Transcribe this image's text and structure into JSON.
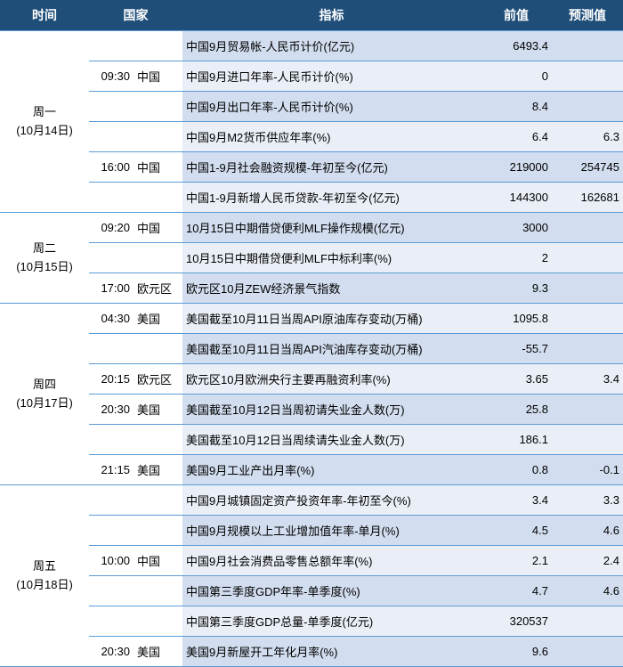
{
  "header": {
    "day": "时间",
    "country": "国家",
    "indicator": "指标",
    "prev": "前值",
    "forecast": "预测值"
  },
  "days": [
    {
      "label_line1": "周一",
      "label_line2": "(10月14日)",
      "rows": [
        {
          "time": "",
          "country": "",
          "indicator": "中国9月贸易帐-人民币计价(亿元)",
          "prev": "6493.4",
          "forecast": "",
          "parity": "odd",
          "time_rowspan": 0,
          "country_rowspan": 0
        },
        {
          "time": "09:30",
          "country": "中国",
          "indicator": "中国9月进口年率-人民币计价(%)",
          "prev": "0",
          "forecast": "",
          "parity": "even",
          "time_rowspan": 1,
          "country_rowspan": 1,
          "first_in_day": true,
          "day_rowspan": 6
        },
        {
          "time": "",
          "country": "",
          "indicator": "中国9月出口年率-人民币计价(%)",
          "prev": "8.4",
          "forecast": "",
          "parity": "odd",
          "time_rowspan": 0,
          "country_rowspan": 0
        },
        {
          "time": "",
          "country": "",
          "indicator": "中国9月M2货币供应年率(%)",
          "prev": "6.4",
          "forecast": "6.3",
          "parity": "even",
          "time_rowspan": 0,
          "country_rowspan": 0
        },
        {
          "time": "16:00",
          "country": "中国",
          "indicator": "中国1-9月社会融资规模-年初至今(亿元)",
          "prev": "219000",
          "forecast": "254745",
          "parity": "odd",
          "time_rowspan": 1,
          "country_rowspan": 1
        },
        {
          "time": "",
          "country": "",
          "indicator": "中国1-9月新增人民币贷款-年初至今(亿元)",
          "prev": "144300",
          "forecast": "162681",
          "parity": "even",
          "time_rowspan": 0,
          "country_rowspan": 0
        }
      ]
    },
    {
      "label_line1": "周二",
      "label_line2": "(10月15日)",
      "rows": [
        {
          "time": "09:20",
          "country": "中国",
          "indicator": "10月15日中期借贷便利MLF操作规模(亿元)",
          "prev": "3000",
          "forecast": "",
          "parity": "odd",
          "time_rowspan": 1,
          "country_rowspan": 1,
          "first_in_day": true,
          "day_rowspan": 3
        },
        {
          "time": "",
          "country": "",
          "indicator": "10月15日中期借贷便利MLF中标利率(%)",
          "prev": "2",
          "forecast": "",
          "parity": "even",
          "time_rowspan": 0,
          "country_rowspan": 0
        },
        {
          "time": "17:00",
          "country": "欧元区",
          "indicator": "欧元区10月ZEW经济景气指数",
          "prev": "9.3",
          "forecast": "",
          "parity": "odd",
          "time_rowspan": 1,
          "country_rowspan": 1
        }
      ]
    },
    {
      "label_line1": "周四",
      "label_line2": "(10月17日)",
      "rows": [
        {
          "time": "04:30",
          "country": "美国",
          "indicator": "美国截至10月11日当周API原油库存变动(万桶)",
          "prev": "1095.8",
          "forecast": "",
          "parity": "even",
          "time_rowspan": 1,
          "country_rowspan": 1,
          "first_in_day": true,
          "day_rowspan": 6
        },
        {
          "time": "",
          "country": "",
          "indicator": "美国截至10月11日当周API汽油库存变动(万桶)",
          "prev": "-55.7",
          "forecast": "",
          "parity": "odd",
          "time_rowspan": 0,
          "country_rowspan": 0
        },
        {
          "time": "20:15",
          "country": "欧元区",
          "indicator": "欧元区10月欧洲央行主要再融资利率(%)",
          "prev": "3.65",
          "forecast": "3.4",
          "parity": "even",
          "time_rowspan": 1,
          "country_rowspan": 1
        },
        {
          "time": "20:30",
          "country": "美国",
          "indicator": "美国截至10月12日当周初请失业金人数(万)",
          "prev": "25.8",
          "forecast": "",
          "parity": "odd",
          "time_rowspan": 1,
          "country_rowspan": 1
        },
        {
          "time": "",
          "country": "",
          "indicator": "美国截至10月12日当周续请失业金人数(万)",
          "prev": "186.1",
          "forecast": "",
          "parity": "even",
          "time_rowspan": 0,
          "country_rowspan": 0
        },
        {
          "time": "21:15",
          "country": "美国",
          "indicator": "美国9月工业产出月率(%)",
          "prev": "0.8",
          "forecast": "-0.1",
          "parity": "odd",
          "time_rowspan": 1,
          "country_rowspan": 1
        }
      ]
    },
    {
      "label_line1": "周五",
      "label_line2": "(10月18日)",
      "rows": [
        {
          "time": "",
          "country": "",
          "indicator": "中国9月城镇固定资产投资年率-年初至今(%)",
          "prev": "3.4",
          "forecast": "3.3",
          "parity": "even",
          "time_rowspan": 0,
          "country_rowspan": 0,
          "first_in_day": true,
          "day_rowspan": 6
        },
        {
          "time": "",
          "country": "",
          "indicator": "中国9月规模以上工业增加值年率-单月(%)",
          "prev": "4.5",
          "forecast": "4.6",
          "parity": "odd",
          "time_rowspan": 0,
          "country_rowspan": 0
        },
        {
          "time": "10:00",
          "country": "中国",
          "indicator": "中国9月社会消费品零售总额年率(%)",
          "prev": "2.1",
          "forecast": "2.4",
          "parity": "even",
          "time_rowspan": 1,
          "country_rowspan": 1
        },
        {
          "time": "",
          "country": "",
          "indicator": "中国第三季度GDP年率-单季度(%)",
          "prev": "4.7",
          "forecast": "4.6",
          "parity": "odd",
          "time_rowspan": 0,
          "country_rowspan": 0
        },
        {
          "time": "",
          "country": "",
          "indicator": "中国第三季度GDP总量-单季度(亿元)",
          "prev": "320537",
          "forecast": "",
          "parity": "even",
          "time_rowspan": 0,
          "country_rowspan": 0
        },
        {
          "time": "20:30",
          "country": "美国",
          "indicator": "美国9月新屋开工年化月率(%)",
          "prev": "9.6",
          "forecast": "",
          "parity": "odd",
          "time_rowspan": 1,
          "country_rowspan": 1
        }
      ]
    }
  ]
}
